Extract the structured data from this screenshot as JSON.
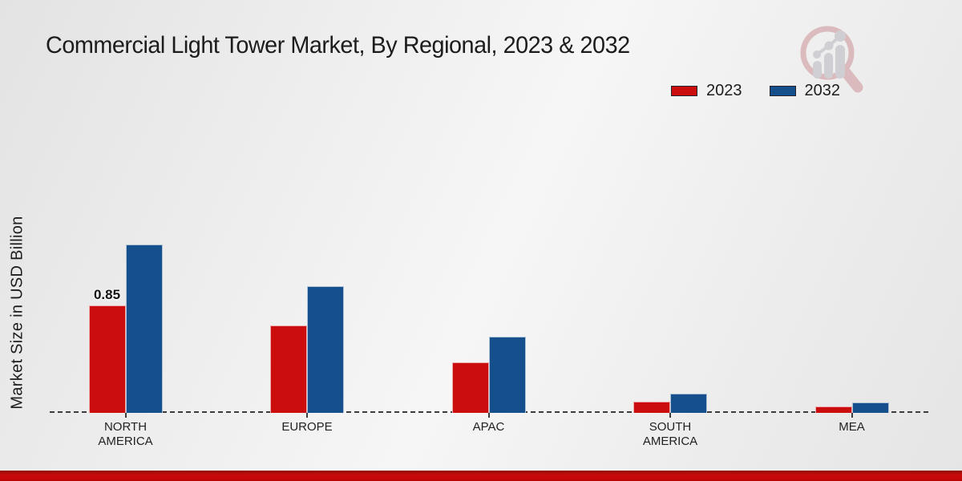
{
  "title": "Commercial Light Tower Market, By Regional, 2023 & 2032",
  "ylabel": "Market Size in USD Billion",
  "legend": [
    {
      "label": "2023",
      "color": "#cc0d0d"
    },
    {
      "label": "2032",
      "color": "#15508c"
    }
  ],
  "colors": {
    "bar_2023": "#cc0d0d",
    "bar_2032": "#15508c",
    "footer_band": "#c60b0b",
    "background": "#ededed",
    "baseline": "#3c3c3c"
  },
  "watermark_icon": "magnifier-bar-chart-logo",
  "chart_data": {
    "type": "bar",
    "title": "Commercial Light Tower Market, By Regional, 2023 & 2032",
    "categories": [
      "NORTH AMERICA",
      "EUROPE",
      "APAC",
      "SOUTH AMERICA",
      "MEA"
    ],
    "series": [
      {
        "name": "2023",
        "color": "#cc0d0d",
        "values": [
          0.85,
          0.69,
          0.4,
          0.09,
          0.05
        ]
      },
      {
        "name": "2032",
        "color": "#15508c",
        "values": [
          1.33,
          1.0,
          0.6,
          0.15,
          0.08
        ]
      }
    ],
    "bar_labels": [
      {
        "category": "NORTH AMERICA",
        "series": "2023",
        "text": "0.85"
      }
    ],
    "xlabel": "",
    "ylabel": "Market Size in USD Billion",
    "ylim": [
      0,
      1.45
    ],
    "grid": false,
    "axis_line": "dashed-zero-line",
    "legend_position": "top-right"
  }
}
